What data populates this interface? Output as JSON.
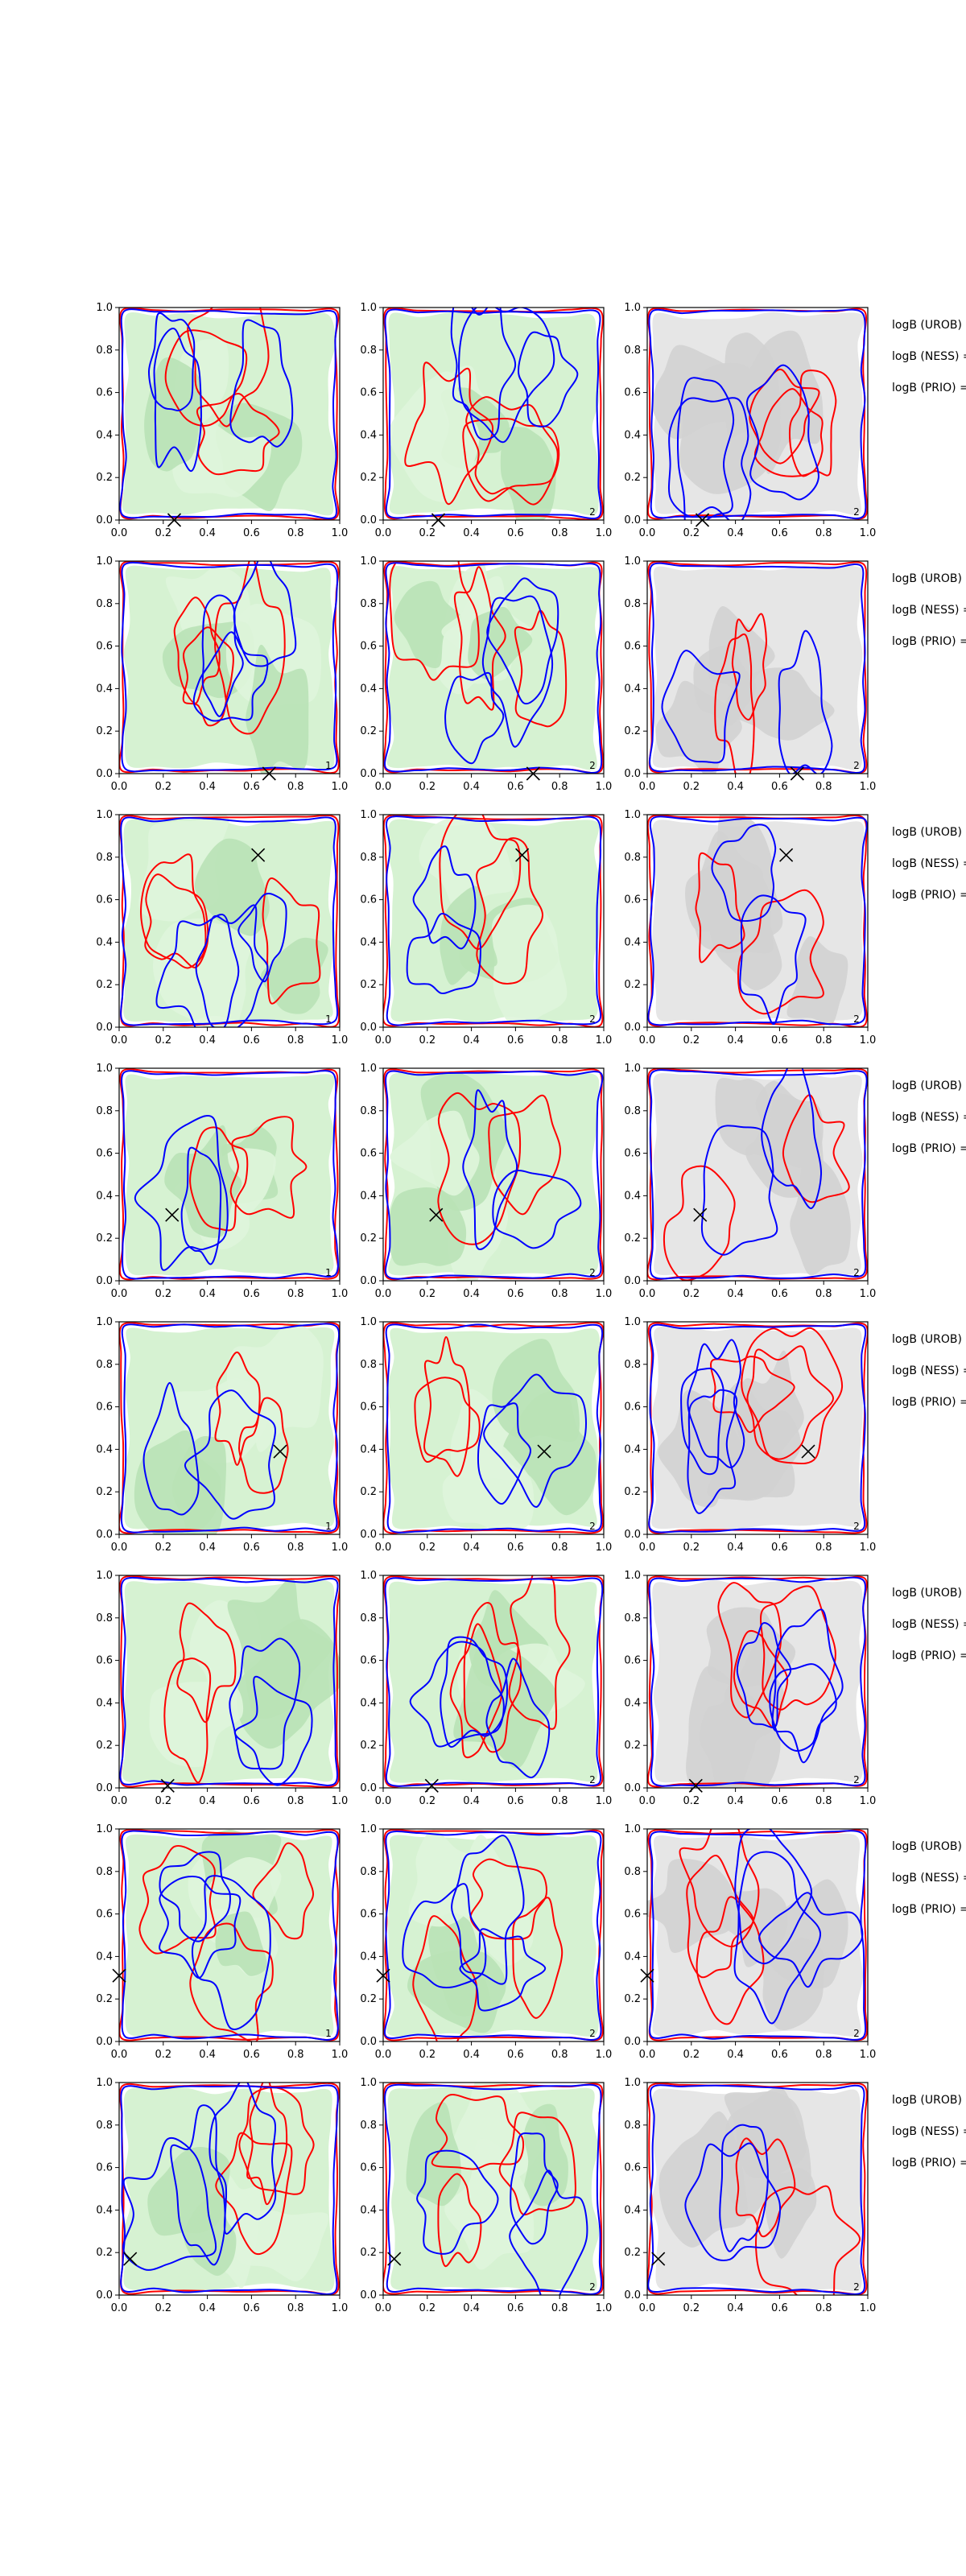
{
  "figure": {
    "colors": {
      "red_contour": "#ff0000",
      "blue_contour": "#0000ff",
      "green_bg_1": "#c8ecc4",
      "green_bg_2": "#d6f2d2",
      "green_fill_light": "#dff5dc",
      "green_fill_dark": "#b9e2b6",
      "gray_bg": "#e6e6e6",
      "gray_fill": "#d2d2d2",
      "marker": "#000000"
    },
    "columns": [
      {
        "background": "green",
        "corner_label": ""
      },
      {
        "background": "green",
        "corner_label": "2"
      },
      {
        "background": "gray",
        "corner_label": "2"
      }
    ],
    "first_column_corner_labels": [
      "",
      "1",
      "1",
      "1",
      "1",
      "",
      "1",
      ""
    ],
    "side_labels": [
      "logB (UROB) =",
      "logB (NESS) =",
      "logB (PRIO) ="
    ]
  },
  "chart_data": {
    "type": "contour",
    "layout": {
      "rows": 8,
      "cols": 3
    },
    "xlim": [
      0.0,
      1.0
    ],
    "ylim": [
      0.0,
      1.0
    ],
    "xticks": [
      "0.0",
      "0.2",
      "0.4",
      "0.6",
      "0.8",
      "1.0"
    ],
    "yticks": [
      "0.0",
      "0.2",
      "0.4",
      "0.6",
      "0.8",
      "1.0"
    ],
    "contour_series": [
      {
        "color": "red"
      },
      {
        "color": "blue"
      }
    ],
    "markers": [
      {
        "row": 1,
        "x": 0.25,
        "y": 0.0
      },
      {
        "row": 2,
        "x": 0.68,
        "y": 0.0
      },
      {
        "row": 3,
        "x": 0.63,
        "y": 0.81
      },
      {
        "row": 4,
        "x": 0.24,
        "y": 0.31
      },
      {
        "row": 5,
        "x": 0.73,
        "y": 0.39
      },
      {
        "row": 6,
        "x": 0.22,
        "y": 0.01
      },
      {
        "row": 7,
        "x": 0.0,
        "y": 0.31
      },
      {
        "row": 8,
        "x": 0.05,
        "y": 0.17
      }
    ]
  }
}
